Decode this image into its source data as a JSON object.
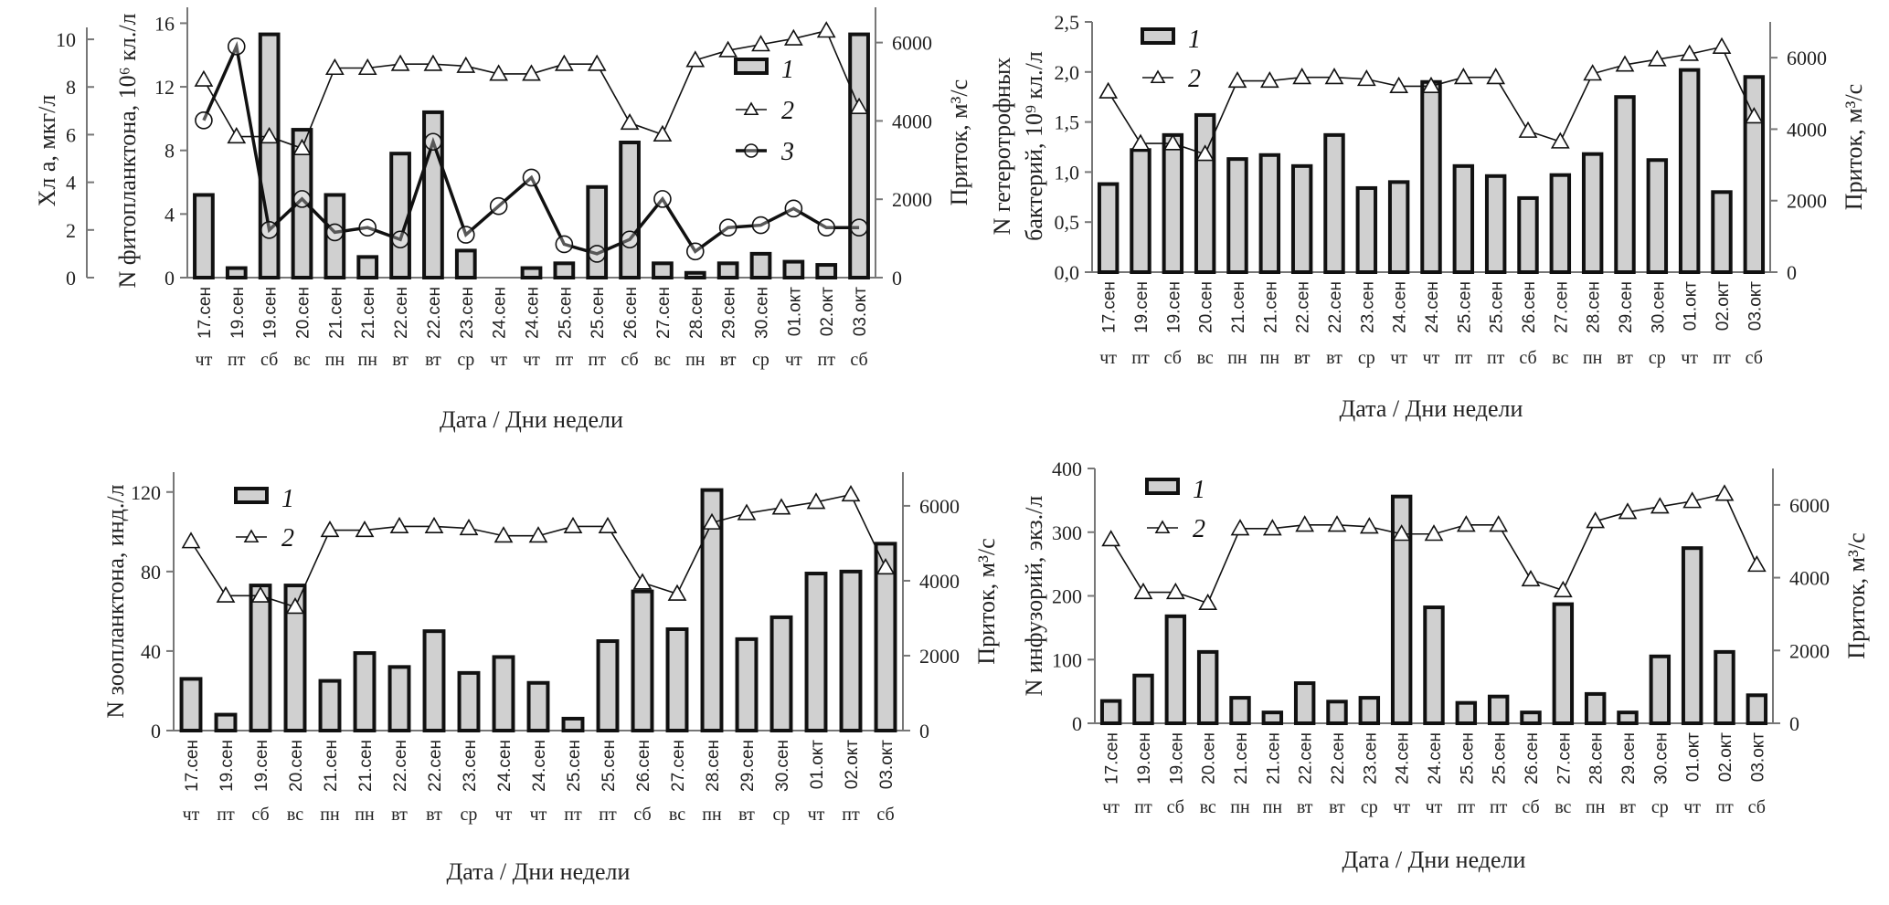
{
  "chart_data": [
    {
      "id": "phyto",
      "type": "bar",
      "categories": [
        "17.сен",
        "19.сен",
        "19.сен",
        "20.сен",
        "21.сен",
        "21.сен",
        "22.сен",
        "22.сен",
        "23.сен",
        "24.сен",
        "24.сен",
        "25.сен",
        "25.сен",
        "26.сен",
        "27.сен",
        "28.сен",
        "29.сен",
        "30.сен",
        "01.окт",
        "02.окт",
        "03.окт"
      ],
      "days": [
        "чт",
        "пт",
        "сб",
        "вс",
        "пн",
        "пн",
        "вт",
        "вт",
        "ср",
        "чт",
        "чт",
        "пт",
        "пт",
        "сб",
        "вс",
        "пн",
        "вт",
        "ср",
        "чт",
        "пт",
        "сб"
      ],
      "xlabel": "Дата / Дни недели",
      "ylabel_outer": "Хл a, мкг/л",
      "ylabel": "N фитопланктона, 10^6 кл./л",
      "ylabel_right": "Приток, м³/с",
      "ylim_outer": [
        0,
        10.5
      ],
      "yticks_outer": [
        0,
        2,
        4,
        6,
        8,
        10
      ],
      "ylim": [
        0,
        17
      ],
      "yticks": [
        0,
        4,
        8,
        12,
        16
      ],
      "ylim_right": [
        0,
        6900
      ],
      "yticks_right": [
        0,
        2000,
        4000,
        6000
      ],
      "legend": [
        "1",
        "2",
        "3"
      ],
      "legend_position": "top-right",
      "series": [
        {
          "name": "1",
          "kind": "bar",
          "axis": "left",
          "values": [
            5.2,
            0.6,
            15.3,
            9.3,
            5.2,
            1.3,
            7.8,
            10.4,
            1.7,
            0,
            0.6,
            0.9,
            5.7,
            8.5,
            0.9,
            0.3,
            0.9,
            1.5,
            1.0,
            0.8,
            15.3
          ]
        },
        {
          "name": "2",
          "kind": "line-triangle",
          "axis": "right",
          "values": [
            5050,
            3600,
            3600,
            3300,
            5350,
            5350,
            5450,
            5450,
            5400,
            5200,
            5200,
            5450,
            5450,
            3950,
            3650,
            5550,
            5800,
            5950,
            6100,
            6300,
            4350
          ]
        },
        {
          "name": "3",
          "kind": "line-circle",
          "axis": "outer",
          "values": [
            6.6,
            9.7,
            2.0,
            3.3,
            1.9,
            2.1,
            1.6,
            5.7,
            1.8,
            3.0,
            4.2,
            1.4,
            1.0,
            1.6,
            3.3,
            1.1,
            2.1,
            2.2,
            2.9,
            2.1,
            2.1
          ]
        }
      ]
    },
    {
      "id": "bacteria",
      "type": "bar",
      "categories": [
        "17.сен",
        "19.сен",
        "19.сен",
        "20.сен",
        "21.сен",
        "21.сен",
        "22.сен",
        "22.сен",
        "23.сен",
        "24.сен",
        "24.сен",
        "25.сен",
        "25.сен",
        "26.сен",
        "27.сен",
        "28.сен",
        "29.сен",
        "30.сен",
        "01.окт",
        "02.окт",
        "03.окт"
      ],
      "days": [
        "чт",
        "пт",
        "сб",
        "вс",
        "пн",
        "пн",
        "вт",
        "вт",
        "ср",
        "чт",
        "чт",
        "пт",
        "пт",
        "сб",
        "вс",
        "пн",
        "вт",
        "ср",
        "чт",
        "пт",
        "сб"
      ],
      "xlabel": "Дата / Дни недели",
      "ylabel_line1": "N гетеротрофных",
      "ylabel_line2": "бактерий, 10^9 кл./л",
      "ylabel_right": "Приток, м³/с",
      "ylim": [
        0,
        2.5
      ],
      "yticks": [
        "0,0",
        "0,5",
        "1,0",
        "1,5",
        "2,0",
        "2,5"
      ],
      "ylim_right": [
        0,
        7000
      ],
      "yticks_right": [
        0,
        2000,
        4000,
        6000
      ],
      "legend": [
        "1",
        "2"
      ],
      "legend_position": "top-left",
      "series": [
        {
          "name": "1",
          "kind": "bar",
          "axis": "left",
          "values": [
            0.88,
            1.22,
            1.37,
            1.57,
            1.13,
            1.17,
            1.06,
            1.37,
            0.84,
            0.9,
            1.9,
            1.06,
            0.96,
            0.74,
            0.97,
            1.18,
            1.75,
            1.12,
            2.02,
            0.8,
            1.95
          ]
        },
        {
          "name": "2",
          "kind": "line-triangle",
          "axis": "right",
          "values": [
            5050,
            3600,
            3600,
            3300,
            5350,
            5350,
            5450,
            5450,
            5400,
            5200,
            5200,
            5450,
            5450,
            3950,
            3650,
            5550,
            5800,
            5950,
            6100,
            6300,
            4350
          ]
        }
      ]
    },
    {
      "id": "zoo",
      "type": "bar",
      "categories": [
        "17.сен",
        "19.сен",
        "19.сен",
        "20.сен",
        "21.сен",
        "21.сен",
        "22.сен",
        "22.сен",
        "23.сен",
        "24.сен",
        "24.сен",
        "25.сен",
        "25.сен",
        "26.сен",
        "27.сен",
        "28.сен",
        "29.сен",
        "30.сен",
        "01.окт",
        "02.окт",
        "03.окт"
      ],
      "days": [
        "чт",
        "пт",
        "сб",
        "вс",
        "пн",
        "пн",
        "вт",
        "вт",
        "ср",
        "чт",
        "чт",
        "пт",
        "пт",
        "сб",
        "вс",
        "пн",
        "вт",
        "ср",
        "чт",
        "пт",
        "сб"
      ],
      "xlabel": "Дата / Дни недели",
      "ylabel": "N зоопланктона, инд./л",
      "ylabel_right": "Приток, м³/с",
      "ylim": [
        0,
        130
      ],
      "yticks": [
        0,
        40,
        80,
        120
      ],
      "ylim_right": [
        0,
        6900
      ],
      "yticks_right": [
        0,
        2000,
        4000,
        6000
      ],
      "legend": [
        "1",
        "2"
      ],
      "legend_position": "top-left",
      "series": [
        {
          "name": "1",
          "kind": "bar",
          "axis": "left",
          "values": [
            26,
            8,
            73,
            73,
            25,
            39,
            32,
            50,
            29,
            37,
            24,
            6,
            45,
            70,
            51,
            121,
            46,
            57,
            79,
            80,
            94
          ]
        },
        {
          "name": "2",
          "kind": "line-triangle",
          "axis": "right",
          "values": [
            5050,
            3600,
            3600,
            3300,
            5350,
            5350,
            5450,
            5450,
            5400,
            5200,
            5200,
            5450,
            5450,
            3950,
            3650,
            5550,
            5800,
            5950,
            6100,
            6300,
            4350
          ]
        }
      ]
    },
    {
      "id": "ciliates",
      "type": "bar",
      "categories": [
        "17.сен",
        "19.сен",
        "19.сен",
        "20.сен",
        "21.сен",
        "21.сен",
        "22.сен",
        "22.сен",
        "23.сен",
        "24.сен",
        "24.сен",
        "25.сен",
        "25.сен",
        "26.сен",
        "27.сен",
        "28.сен",
        "29.сен",
        "30.сен",
        "01.окт",
        "02.окт",
        "03.окт"
      ],
      "days": [
        "чт",
        "пт",
        "сб",
        "вс",
        "пн",
        "пн",
        "вт",
        "вт",
        "ср",
        "чт",
        "чт",
        "пт",
        "пт",
        "сб",
        "вс",
        "пн",
        "вт",
        "ср",
        "чт",
        "пт",
        "сб"
      ],
      "xlabel": "Дата / Дни недели",
      "ylabel": "N инфузорий, экз./л",
      "ylabel_right": "Приток, м³/с",
      "ylim": [
        0,
        400
      ],
      "yticks": [
        0,
        100,
        200,
        300,
        400
      ],
      "ylim_right": [
        0,
        7000
      ],
      "yticks_right": [
        0,
        2000,
        4000,
        6000
      ],
      "legend": [
        "1",
        "2"
      ],
      "legend_position": "top-left",
      "series": [
        {
          "name": "1",
          "kind": "bar",
          "axis": "left",
          "values": [
            35,
            75,
            168,
            112,
            40,
            17,
            63,
            34,
            40,
            356,
            182,
            32,
            42,
            17,
            187,
            46,
            17,
            105,
            275,
            112,
            44
          ]
        },
        {
          "name": "2",
          "kind": "line-triangle",
          "axis": "right",
          "values": [
            5050,
            3600,
            3600,
            3300,
            5350,
            5350,
            5450,
            5450,
            5400,
            5200,
            5200,
            5450,
            5450,
            3950,
            3650,
            5550,
            5800,
            5950,
            6100,
            6300,
            4350
          ]
        }
      ]
    }
  ]
}
